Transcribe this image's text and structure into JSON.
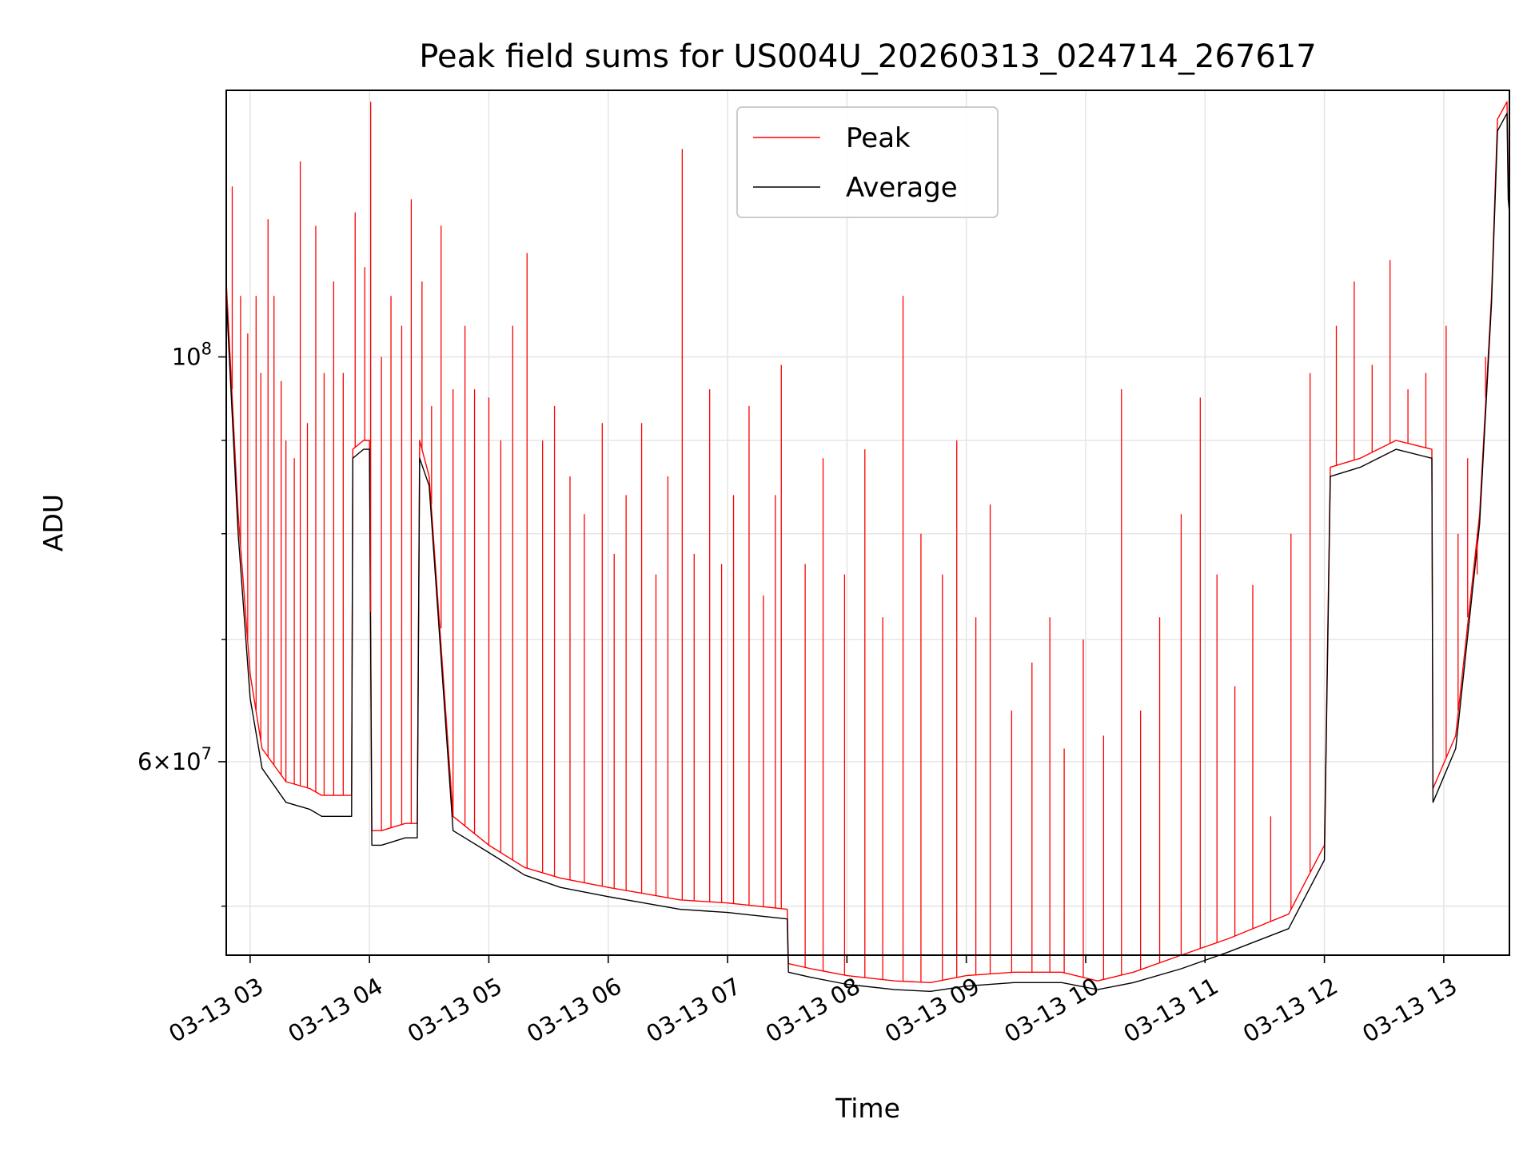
{
  "chart_data": {
    "type": "line",
    "scale_y": "log",
    "title": "Peak field sums for US004U_20260313_024714_267617",
    "xlabel": "Time",
    "ylabel": "ADU",
    "x_unit": "hours since 03-13 00:00",
    "xlim": [
      2.8,
      13.55
    ],
    "ylim": [
      47000000,
      140000000
    ],
    "grid": true,
    "legend_position": "upper-center",
    "x_ticks": [
      {
        "value": 3,
        "label": "03-13 03"
      },
      {
        "value": 4,
        "label": "03-13 04"
      },
      {
        "value": 5,
        "label": "03-13 05"
      },
      {
        "value": 6,
        "label": "03-13 06"
      },
      {
        "value": 7,
        "label": "03-13 07"
      },
      {
        "value": 8,
        "label": "03-13 08"
      },
      {
        "value": 9,
        "label": "03-13 09"
      },
      {
        "value": 10,
        "label": "03-13 10"
      },
      {
        "value": 11,
        "label": "03-13 11"
      },
      {
        "value": 12,
        "label": "03-13 12"
      },
      {
        "value": 13,
        "label": "03-13 13"
      }
    ],
    "y_major_ticks": [
      {
        "value": 60000000,
        "base": "6",
        "exp": "7"
      },
      {
        "value": 100000000,
        "base": "",
        "exp": "8"
      }
    ],
    "y_minor_ticks": [
      50000000,
      70000000,
      80000000,
      90000000
    ],
    "series": [
      {
        "name": "Peak",
        "color": "#ff0000",
        "x": [
          2.8,
          2.9,
          3.0,
          3.1,
          3.3,
          3.5,
          3.6,
          3.85,
          3.86,
          3.95,
          4.0,
          4.02,
          4.1,
          4.3,
          4.4,
          4.42,
          4.5,
          4.7,
          5.0,
          5.3,
          5.6,
          6.0,
          6.3,
          6.6,
          7.0,
          7.5,
          7.51,
          7.7,
          8.0,
          8.4,
          8.7,
          9.0,
          9.4,
          9.8,
          10.1,
          10.4,
          10.8,
          11.2,
          11.7,
          12.0,
          12.05,
          12.3,
          12.6,
          12.9,
          12.91,
          13.1,
          13.3,
          13.4,
          13.45,
          13.53,
          13.54,
          13.55
        ],
        "y": [
          110000000,
          82000000,
          67000000,
          61000000,
          58500000,
          58000000,
          57500000,
          57500000,
          89000000,
          90000000,
          90000000,
          55000000,
          55000000,
          55500000,
          55500000,
          90000000,
          86000000,
          56000000,
          54000000,
          52500000,
          51800000,
          51200000,
          50800000,
          50400000,
          50200000,
          49800000,
          46500000,
          46200000,
          45800000,
          45500000,
          45400000,
          45800000,
          46000000,
          46000000,
          45500000,
          46000000,
          47000000,
          48000000,
          49500000,
          54000000,
          87000000,
          88000000,
          90000000,
          89000000,
          58000000,
          62000000,
          82000000,
          108000000,
          135000000,
          138000000,
          124000000,
          122000000
        ]
      },
      {
        "name": "Average",
        "color": "#000000",
        "x": [
          2.8,
          2.9,
          3.0,
          3.1,
          3.3,
          3.5,
          3.6,
          3.85,
          3.86,
          3.95,
          4.0,
          4.02,
          4.1,
          4.3,
          4.4,
          4.42,
          4.5,
          4.7,
          5.0,
          5.3,
          5.6,
          6.0,
          6.3,
          6.6,
          7.0,
          7.5,
          7.51,
          7.7,
          8.0,
          8.4,
          8.7,
          9.0,
          9.4,
          9.8,
          10.1,
          10.4,
          10.8,
          11.2,
          11.7,
          12.0,
          12.05,
          12.3,
          12.6,
          12.9,
          12.91,
          13.1,
          13.3,
          13.4,
          13.45,
          13.53,
          13.54,
          13.55
        ],
        "y": [
          108000000,
          80000000,
          65000000,
          59500000,
          57000000,
          56500000,
          56000000,
          56000000,
          88000000,
          89000000,
          89000000,
          54000000,
          54000000,
          54500000,
          54500000,
          88000000,
          85000000,
          55000000,
          53500000,
          52000000,
          51200000,
          50600000,
          50200000,
          49800000,
          49600000,
          49200000,
          46000000,
          45700000,
          45300000,
          45000000,
          44900000,
          45200000,
          45400000,
          45400000,
          45000000,
          45400000,
          46200000,
          47200000,
          48600000,
          53000000,
          86000000,
          87000000,
          89000000,
          88000000,
          57000000,
          61000000,
          81000000,
          107000000,
          133000000,
          136000000,
          122000000,
          120000000
        ]
      }
    ],
    "spikes": {
      "series": "Peak",
      "x": [
        2.85,
        2.92,
        2.98,
        3.05,
        3.09,
        3.15,
        3.2,
        3.26,
        3.3,
        3.37,
        3.42,
        3.48,
        3.55,
        3.62,
        3.7,
        3.78,
        3.88,
        3.96,
        4.01,
        4.1,
        4.18,
        4.27,
        4.35,
        4.44,
        4.52,
        4.6,
        4.7,
        4.8,
        4.88,
        5.0,
        5.1,
        5.2,
        5.32,
        5.45,
        5.55,
        5.68,
        5.8,
        5.95,
        6.05,
        6.15,
        6.28,
        6.4,
        6.5,
        6.62,
        6.72,
        6.85,
        6.95,
        7.05,
        7.18,
        7.3,
        7.4,
        7.45,
        7.65,
        7.8,
        7.98,
        8.15,
        8.3,
        8.47,
        8.62,
        8.8,
        8.92,
        9.08,
        9.2,
        9.38,
        9.55,
        9.7,
        9.82,
        9.98,
        10.15,
        10.3,
        10.46,
        10.62,
        10.8,
        10.96,
        11.1,
        11.25,
        11.4,
        11.55,
        11.72,
        11.88,
        12.1,
        12.25,
        12.4,
        12.55,
        12.7,
        12.85,
        13.02,
        13.12,
        13.2,
        13.28,
        13.35
      ],
      "y": [
        124000000,
        108000000,
        103000000,
        108000000,
        98000000,
        119000000,
        108000000,
        97000000,
        90000000,
        88000000,
        128000000,
        92000000,
        118000000,
        98000000,
        110000000,
        98000000,
        120000000,
        112000000,
        138000000,
        100000000,
        108000000,
        104000000,
        122000000,
        110000000,
        94000000,
        118000000,
        96000000,
        104000000,
        96000000,
        95000000,
        90000000,
        104000000,
        114000000,
        90000000,
        94000000,
        86000000,
        82000000,
        92000000,
        78000000,
        84000000,
        92000000,
        76000000,
        86000000,
        130000000,
        78000000,
        96000000,
        77000000,
        84000000,
        94000000,
        74000000,
        84000000,
        99000000,
        77000000,
        88000000,
        76000000,
        89000000,
        72000000,
        108000000,
        80000000,
        76000000,
        90000000,
        72000000,
        83000000,
        64000000,
        68000000,
        72000000,
        61000000,
        70000000,
        62000000,
        96000000,
        64000000,
        72000000,
        82000000,
        95000000,
        76000000,
        66000000,
        75000000,
        56000000,
        80000000,
        98000000,
        104000000,
        110000000,
        99000000,
        113000000,
        96000000,
        98000000,
        104000000,
        80000000,
        88000000,
        76000000,
        100000000
      ]
    }
  }
}
